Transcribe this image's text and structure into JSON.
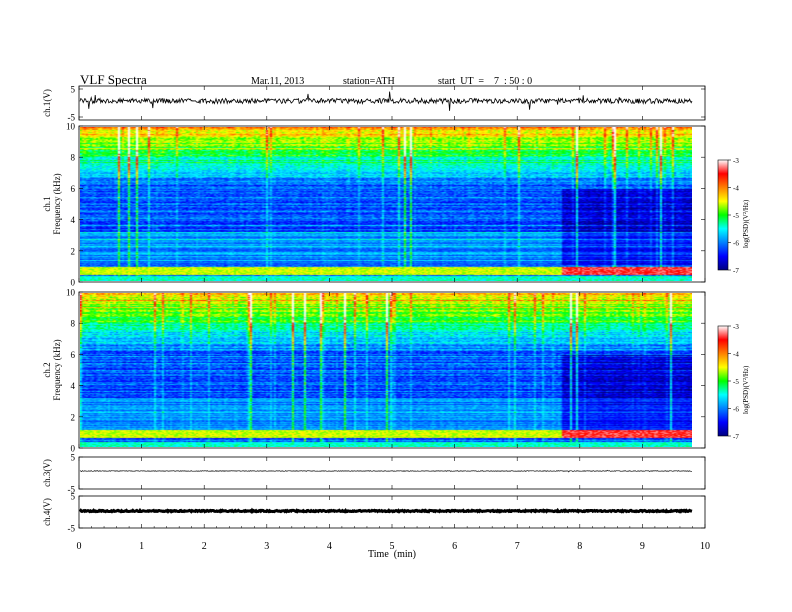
{
  "header": {
    "title": "VLF  Spectra",
    "date": "Mar.11, 2013",
    "station": "station=ATH",
    "start": "start  UT  =    7  : 50 : 0"
  },
  "chart_data": [
    {
      "type": "line",
      "name": "ch1-waveform",
      "ylabel": "ch.1(V)",
      "yticks": [
        "5",
        "-5"
      ],
      "ylim": [
        -5,
        5
      ],
      "trace_color": "#000000"
    },
    {
      "type": "heatmap",
      "name": "ch1-spectrogram",
      "ylabel_top": "ch.1",
      "ylabel": "Frequency  (kHz)",
      "yticks": [
        "0",
        "2",
        "4",
        "6",
        "8",
        "10"
      ],
      "ylim": [
        0,
        10
      ],
      "colorbar": {
        "label": "log(PSD)(V²/Hz)",
        "ticks": [
          "-3",
          "-4",
          "-5",
          "-6",
          "-7"
        ],
        "range": [
          -7,
          -3
        ],
        "colors": [
          "#000080",
          "#0000ff",
          "#0080ff",
          "#00ffff",
          "#00ff00",
          "#ffff00",
          "#ff8000",
          "#ff0000",
          "#ffffff"
        ]
      },
      "noted_features": {
        "data_end_min": 9.8,
        "quiet_region_start_min": 7.7,
        "strong_low_band_khz": 0.6
      }
    },
    {
      "type": "heatmap",
      "name": "ch2-spectrogram",
      "ylabel_top": "ch.2",
      "ylabel": "Frequency  (kHz)",
      "yticks": [
        "0",
        "2",
        "4",
        "6",
        "8",
        "10"
      ],
      "ylim": [
        0,
        10
      ],
      "colorbar": {
        "label": "log(PSD)(V²/Hz)",
        "ticks": [
          "-3",
          "-4",
          "-5",
          "-6",
          "-7"
        ],
        "range": [
          -7,
          -3
        ],
        "colors": [
          "#000080",
          "#0000ff",
          "#0080ff",
          "#00ffff",
          "#00ff00",
          "#ffff00",
          "#ff8000",
          "#ff0000",
          "#ffffff"
        ]
      },
      "noted_features": {
        "data_end_min": 9.8,
        "quiet_region_start_min": 7.7,
        "strong_low_band_khz": 0.8
      }
    },
    {
      "type": "line",
      "name": "ch3-waveform",
      "ylabel": "ch.3(V)",
      "yticks": [
        "5",
        "-5"
      ],
      "ylim": [
        -5,
        5
      ]
    },
    {
      "type": "line",
      "name": "ch4-waveform",
      "ylabel": "ch.4(V)",
      "yticks": [
        "5",
        "-5"
      ],
      "ylim": [
        -5,
        5
      ]
    }
  ],
  "xaxis": {
    "label": "Time  (min)",
    "ticks": [
      "0",
      "1",
      "2",
      "3",
      "4",
      "5",
      "6",
      "7",
      "8",
      "9",
      "10"
    ],
    "xlim": [
      0,
      10
    ]
  }
}
